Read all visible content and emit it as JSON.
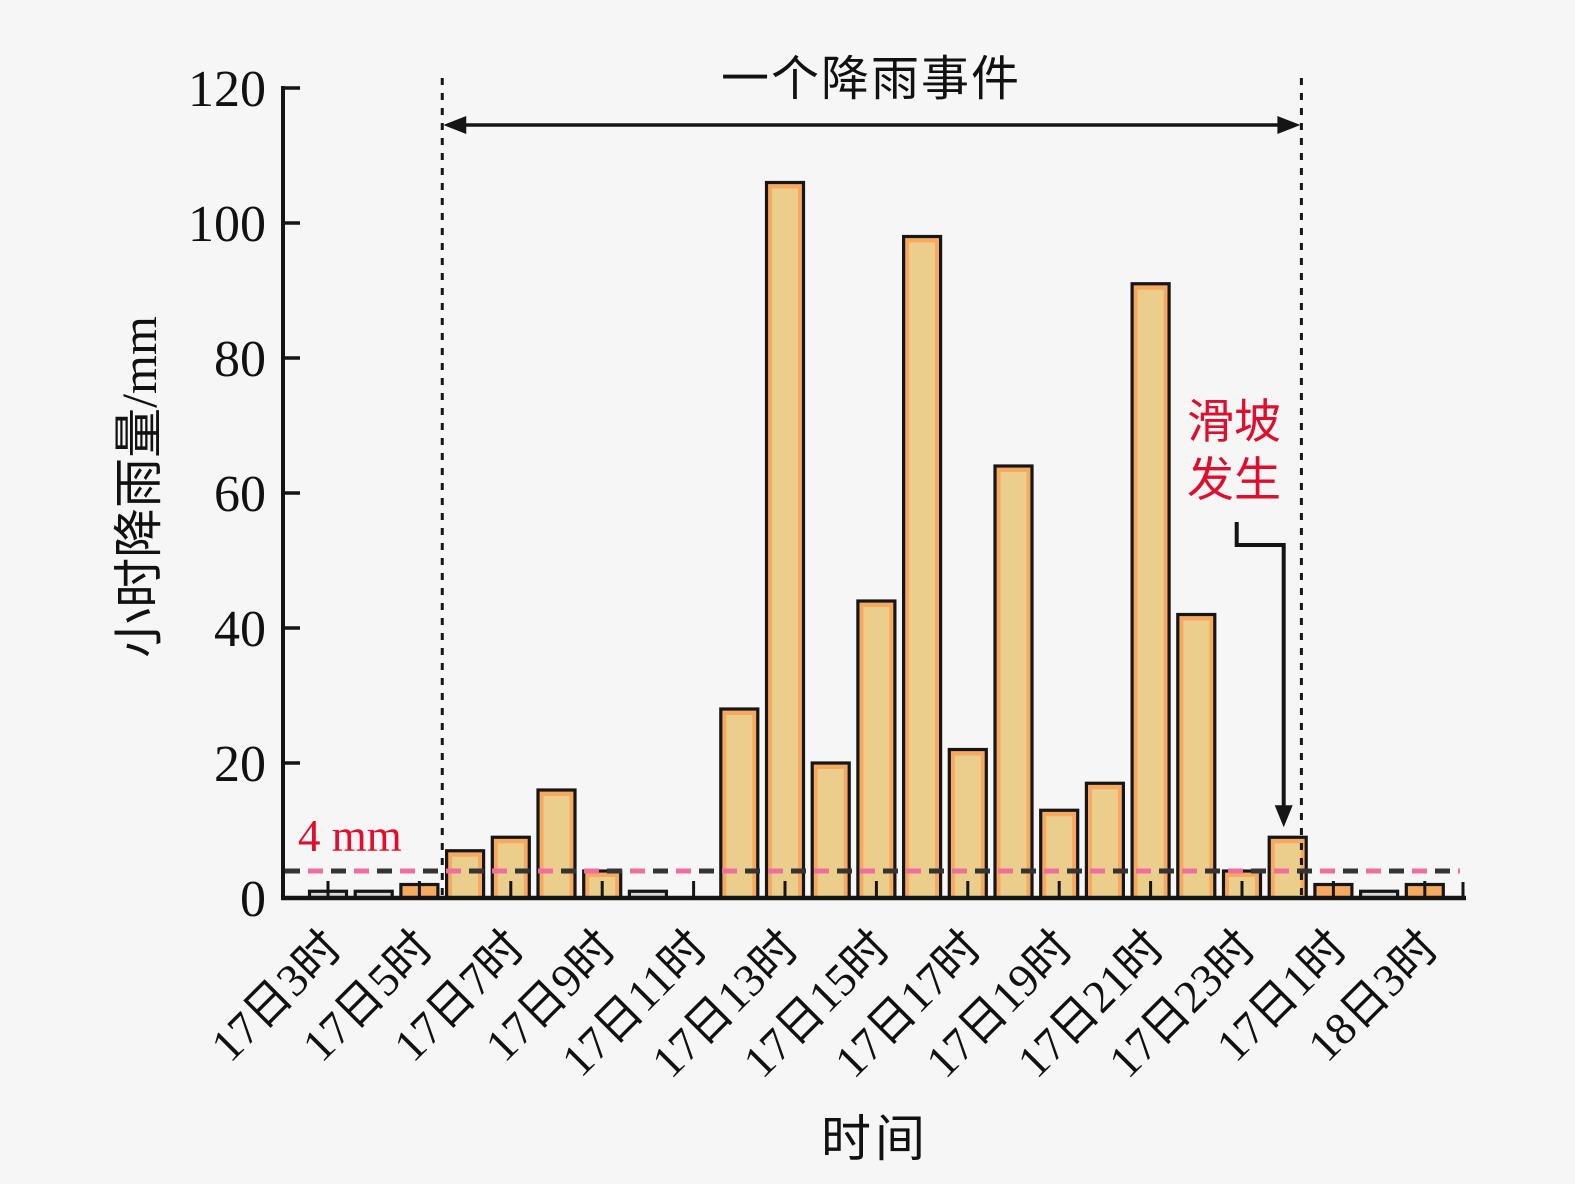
{
  "page": {
    "background": "#f6f6f7"
  },
  "chart_data": {
    "type": "bar",
    "title": "",
    "xlabel": "时间",
    "ylabel": "小时降雨量/mm",
    "ylim": [
      0,
      120
    ],
    "yticks": [
      0,
      20,
      40,
      60,
      80,
      100,
      120
    ],
    "grid": false,
    "legend": null,
    "bar_count": 25,
    "values": [
      1,
      1,
      2,
      7,
      9,
      16,
      4,
      1,
      0,
      28,
      106,
      20,
      44,
      98,
      22,
      64,
      13,
      17,
      91,
      42,
      4,
      9,
      2,
      1,
      2
    ],
    "x_major_tick_labels": [
      "17日3时",
      "17日5时",
      "17日7时",
      "17日9时",
      "17日11时",
      "17日13时",
      "17日15时",
      "17日17时",
      "17日19时",
      "17日21时",
      "17日23时",
      "17日1时",
      "18日3时"
    ],
    "x_tick_every_n_bars": 2,
    "annotations": {
      "event_span": {
        "label": "一个降雨事件",
        "start_bar": 2.5,
        "end_bar": 21.3
      },
      "threshold": {
        "label": "4 mm",
        "value": 4
      },
      "landslide": {
        "label": "滑坡发生",
        "points_to_bar": 21,
        "points_to_value": 9
      }
    },
    "colors": {
      "bar_rim": "#f6a95f",
      "bar_body": "#ecce8c",
      "bar_gray": "#d8d8d8",
      "bar_stroke": "#161616",
      "axis": "#151515",
      "red_text": "#e00e2c",
      "dash_pink": "#ee6f9d",
      "dash_dark": "#343434",
      "background": "#f6f6f7"
    }
  }
}
